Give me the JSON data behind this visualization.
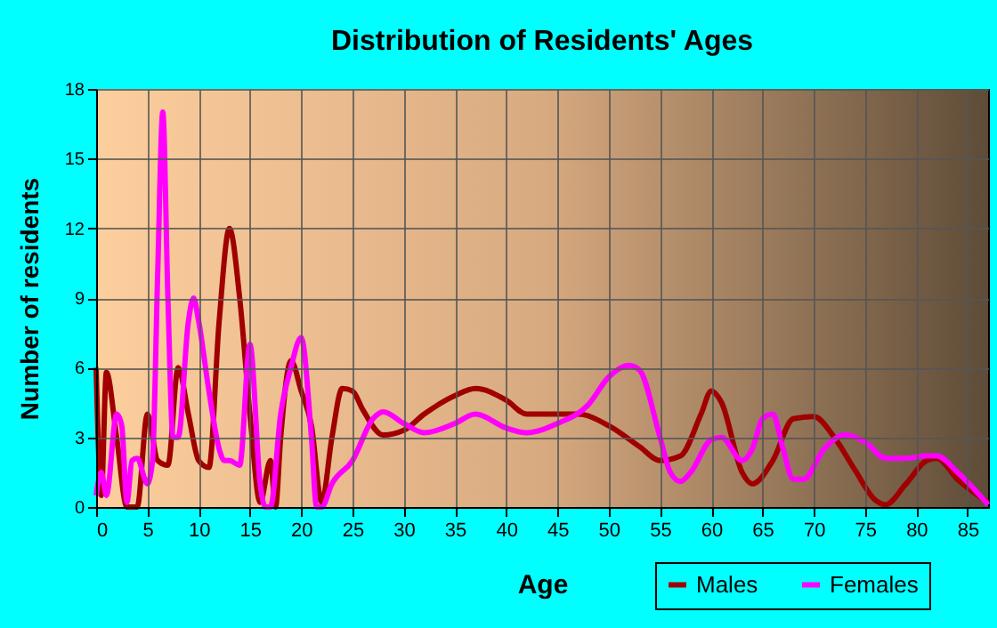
{
  "chart_data": {
    "type": "line",
    "title": "Distribution of Residents' Ages",
    "xlabel": "Age",
    "ylabel": "Number of residents",
    "xlim": [
      0,
      87
    ],
    "xticks": [
      0,
      5,
      10,
      15,
      20,
      25,
      30,
      35,
      40,
      45,
      50,
      55,
      60,
      65,
      70,
      75,
      80,
      85
    ],
    "ylim": [
      0,
      18
    ],
    "yticks": [
      0,
      3,
      6,
      9,
      12,
      15,
      18
    ],
    "grid": true,
    "legend": "bottom right",
    "line_style": "solid",
    "series": [
      {
        "name": "Males",
        "color": "#a00000",
        "x": [
          0,
          0.5,
          1,
          2,
          3,
          4,
          5,
          6,
          7,
          8,
          9,
          10,
          11,
          12,
          13,
          14,
          15,
          16,
          17,
          17.5,
          18,
          19,
          20,
          21,
          22,
          23,
          24,
          25,
          26,
          28,
          30,
          32,
          35,
          37,
          40,
          42,
          45,
          47,
          50,
          53,
          55,
          57,
          59,
          60,
          61,
          63,
          64,
          66,
          68,
          70,
          72,
          74,
          76,
          77,
          79,
          81,
          82,
          84,
          87
        ],
        "values": [
          6,
          0.5,
          5.8,
          3,
          0,
          0,
          4,
          2,
          1.8,
          6,
          4,
          2,
          1.7,
          8,
          12,
          9,
          4,
          0.2,
          2,
          0,
          3,
          6.3,
          5,
          3.5,
          0.2,
          3,
          5.1,
          5,
          4.2,
          3.1,
          3.3,
          4,
          4.8,
          5.1,
          4.6,
          4,
          4,
          4,
          3.5,
          2.6,
          2,
          2.2,
          4,
          5,
          4.5,
          1.5,
          1,
          2,
          3.8,
          3.9,
          3,
          1.6,
          0.3,
          0.1,
          1,
          2,
          2.1,
          1.2,
          0.2
        ]
      },
      {
        "name": "Females",
        "color": "#ff00ff",
        "x": [
          0,
          0.5,
          1,
          2,
          2.5,
          3,
          3.5,
          4,
          5,
          5.5,
          6,
          6.5,
          7,
          7.5,
          8,
          9,
          9.5,
          10,
          11,
          12,
          12.5,
          13,
          14,
          15,
          16,
          16.5,
          17,
          18,
          19,
          20,
          21,
          21.5,
          22,
          23,
          25,
          27,
          28,
          30,
          32,
          35,
          37,
          40,
          42,
          45,
          48,
          50,
          52,
          53,
          55,
          56,
          57,
          58,
          60,
          61,
          63,
          64,
          65,
          66,
          67,
          68,
          69,
          71,
          73,
          75,
          77,
          79,
          81,
          82,
          84,
          87
        ],
        "values": [
          0.5,
          1.5,
          0.5,
          4,
          3.5,
          0.2,
          2,
          2.1,
          1,
          2,
          10,
          17,
          9,
          3,
          3,
          8,
          9,
          8,
          5,
          2.5,
          2,
          2,
          1.8,
          7,
          1,
          0,
          0,
          4,
          6,
          7.3,
          3,
          0,
          0,
          1,
          2,
          3.8,
          4.1,
          3.6,
          3.2,
          3.6,
          4,
          3.4,
          3.2,
          3.6,
          4.4,
          5.6,
          6.1,
          5.9,
          3,
          1.5,
          1.1,
          1.5,
          2.9,
          3,
          2,
          2.5,
          3.8,
          4,
          2.5,
          1.2,
          1.2,
          2.5,
          3.1,
          2.8,
          2.1,
          2.1,
          2.2,
          2.2,
          1.5,
          0.1
        ]
      }
    ]
  }
}
